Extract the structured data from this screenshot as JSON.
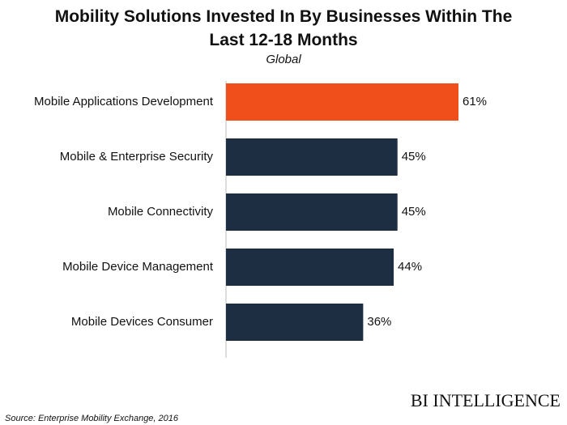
{
  "chart_data": {
    "type": "bar",
    "orientation": "horizontal",
    "title": "Mobility Solutions Invested In By Businesses Within The Last 12-18 Months",
    "subtitle": "Global",
    "categories": [
      "Mobile Applications Development",
      "Mobile & Enterprise Security",
      "Mobile Connectivity",
      "Mobile Device Management",
      "Mobile Devices Consumer"
    ],
    "values": [
      61,
      45,
      45,
      44,
      36
    ],
    "value_labels": [
      "61%",
      "45%",
      "45%",
      "44%",
      "36%"
    ],
    "colors": [
      "#f04e1b",
      "#1e2e42",
      "#1e2e42",
      "#1e2e42",
      "#1e2e42"
    ],
    "source": "Source: Enterprise Mobility Exchange, 2016",
    "logo": "BI INTELLIGENCE"
  }
}
